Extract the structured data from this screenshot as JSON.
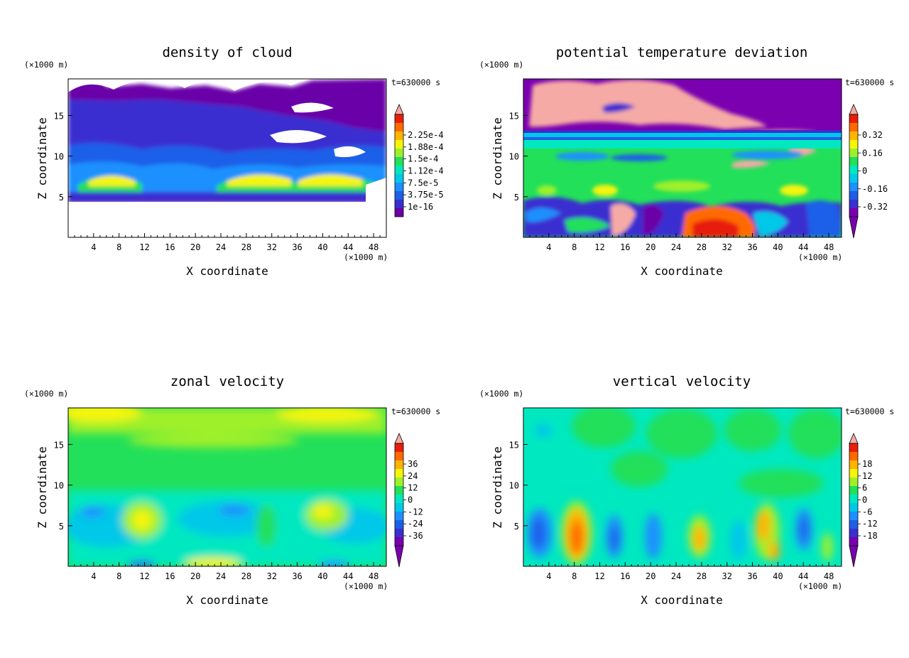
{
  "chart_data": [
    {
      "type": "heatmap",
      "title": "density of cloud",
      "xlabel": "X coordinate",
      "ylabel": "Z coordinate",
      "x_unit": "(×1000 m)",
      "y_unit": "(×1000 m)",
      "time_label": "t=630000 s",
      "xlim": [
        0,
        50
      ],
      "ylim": [
        0,
        19.5
      ],
      "xticks": [
        4,
        8,
        12,
        16,
        20,
        24,
        28,
        32,
        36,
        40,
        44,
        48
      ],
      "yticks": [
        5,
        10,
        15
      ],
      "colorbar": {
        "labels": [
          "2.25e-4",
          "1.88e-4",
          "1.5e-4",
          "1.12e-4",
          "7.5e-5",
          "3.75e-5",
          "1e-16"
        ],
        "colors": [
          "#6a00a8",
          "#3a2fd0",
          "#1f5fe8",
          "#1e90ff",
          "#00c8e8",
          "#00e8c0",
          "#22e05a",
          "#9ef02a",
          "#f5f50a",
          "#ffb400",
          "#ff6a00",
          "#e81e0a",
          "#f5aaa6"
        ],
        "extend": "max"
      }
    },
    {
      "type": "heatmap",
      "title": "potential temperature deviation",
      "xlabel": "X coordinate",
      "ylabel": "Z coordinate",
      "x_unit": "(×1000 m)",
      "y_unit": "(×1000 m)",
      "time_label": "t=630000 s",
      "xlim": [
        0,
        50
      ],
      "ylim": [
        0,
        19.5
      ],
      "xticks": [
        4,
        8,
        12,
        16,
        20,
        24,
        28,
        32,
        36,
        40,
        44,
        48
      ],
      "yticks": [
        5,
        10,
        15
      ],
      "colorbar": {
        "labels": [
          "0.32",
          "0.16",
          "0",
          "-0.16",
          "-0.32"
        ],
        "colors": [
          "#7a00b0",
          "#3a2fd0",
          "#1f5fe8",
          "#1e90ff",
          "#00c8e8",
          "#00e8c0",
          "#22e05a",
          "#9ef02a",
          "#f5f50a",
          "#ffb400",
          "#ff6a00",
          "#e81e0a",
          "#f5aaa6"
        ],
        "extend": "both"
      }
    },
    {
      "type": "heatmap",
      "title": "zonal velocity",
      "xlabel": "X coordinate",
      "ylabel": "Z coordinate",
      "x_unit": "(×1000 m)",
      "y_unit": "(×1000 m)",
      "time_label": "t=630000 s",
      "xlim": [
        0,
        50
      ],
      "ylim": [
        0,
        19.5
      ],
      "xticks": [
        4,
        8,
        12,
        16,
        20,
        24,
        28,
        32,
        36,
        40,
        44,
        48
      ],
      "yticks": [
        5,
        10,
        15
      ],
      "colorbar": {
        "labels": [
          "36",
          "24",
          "12",
          "0",
          "-12",
          "-24",
          "-36"
        ],
        "colors": [
          "#7a00b0",
          "#3a2fd0",
          "#1f5fe8",
          "#1e90ff",
          "#00c8e8",
          "#00e8c0",
          "#22e05a",
          "#9ef02a",
          "#f5f50a",
          "#ffb400",
          "#ff6a00",
          "#e81e0a",
          "#f5aaa6"
        ],
        "extend": "both"
      }
    },
    {
      "type": "heatmap",
      "title": "vertical velocity",
      "xlabel": "X coordinate",
      "ylabel": "Z coordinate",
      "x_unit": "(×1000 m)",
      "y_unit": "(×1000 m)",
      "time_label": "t=630000 s",
      "xlim": [
        0,
        50
      ],
      "ylim": [
        0,
        19.5
      ],
      "xticks": [
        4,
        8,
        12,
        16,
        20,
        24,
        28,
        32,
        36,
        40,
        44,
        48
      ],
      "yticks": [
        5,
        10,
        15
      ],
      "colorbar": {
        "labels": [
          "18",
          "12",
          "6",
          "0",
          "-6",
          "-12",
          "-18"
        ],
        "colors": [
          "#7a00b0",
          "#3a2fd0",
          "#1f5fe8",
          "#1e90ff",
          "#00c8e8",
          "#00e8c0",
          "#22e05a",
          "#9ef02a",
          "#f5f50a",
          "#ffb400",
          "#ff6a00",
          "#e81e0a",
          "#f5aaa6"
        ],
        "extend": "both"
      }
    }
  ]
}
